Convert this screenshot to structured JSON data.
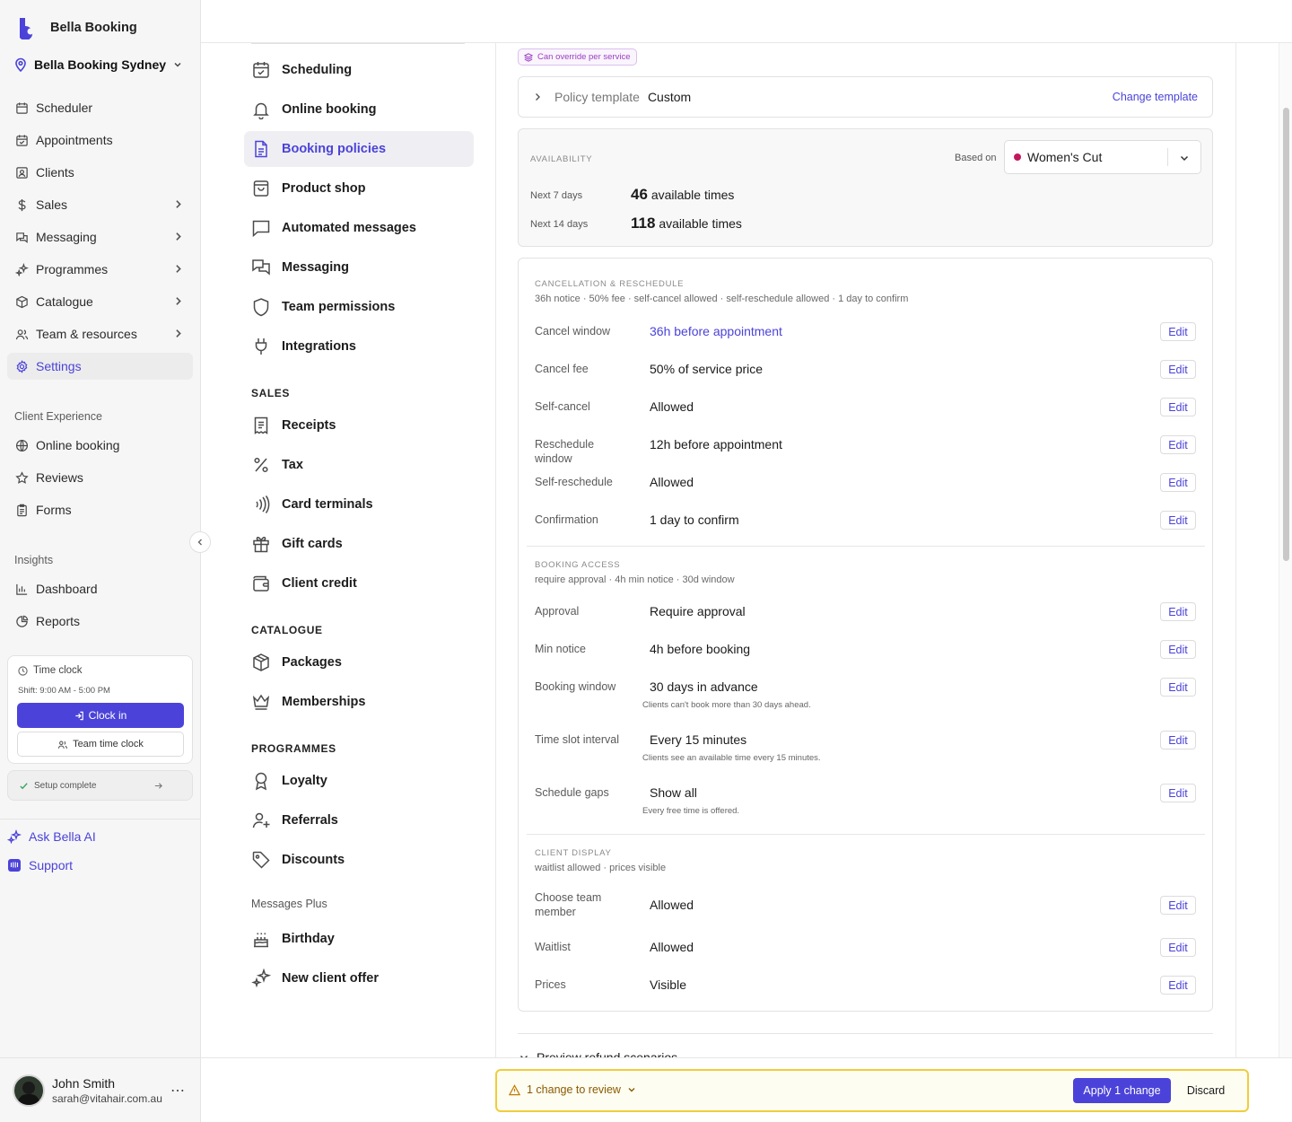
{
  "sidebar": {
    "brand": "Bella Booking",
    "location": "Bella Booking Sydney",
    "nav": [
      {
        "label": "Scheduler",
        "icon": "calendar-icon"
      },
      {
        "label": "Appointments",
        "icon": "calendar-check-icon"
      },
      {
        "label": "Clients",
        "icon": "clients-icon"
      },
      {
        "label": "Sales",
        "icon": "dollar-icon"
      },
      {
        "label": "Messaging",
        "icon": "messaging-icon"
      },
      {
        "label": "Programmes",
        "icon": "sparkle-icon"
      },
      {
        "label": "Catalogue",
        "icon": "box-icon"
      },
      {
        "label": "Team & resources",
        "icon": "team-icon"
      },
      {
        "label": "Settings",
        "icon": "gear-icon"
      }
    ],
    "client_experience_label": "Client Experience",
    "client_experience": [
      {
        "label": "Online booking",
        "icon": "globe-icon"
      },
      {
        "label": "Reviews",
        "icon": "star-icon"
      },
      {
        "label": "Forms",
        "icon": "clipboard-icon"
      }
    ],
    "insights_label": "Insights",
    "insights": [
      {
        "label": "Dashboard",
        "icon": "bar-chart-icon"
      },
      {
        "label": "Reports",
        "icon": "pie-chart-icon"
      }
    ],
    "time_clock": {
      "title": "Time clock",
      "shift": "Shift: 9:00 AM - 5:00 PM",
      "clock_in": "Clock in",
      "team_clock": "Team time clock"
    },
    "setup": "Setup complete",
    "ask_ai": "Ask Bella AI",
    "support": "Support",
    "user": {
      "name": "John Smith",
      "email": "sarah@vitahair.com.au"
    }
  },
  "settings_menu": {
    "items_top": [
      "Scheduling",
      "Online booking",
      "Booking policies",
      "Product shop",
      "Automated messages",
      "Messaging",
      "Team permissions",
      "Integrations"
    ],
    "sales_header": "SALES",
    "sales": [
      "Receipts",
      "Tax",
      "Card terminals",
      "Gift cards",
      "Client credit"
    ],
    "catalogue_header": "CATALOGUE",
    "catalogue": [
      "Packages",
      "Memberships"
    ],
    "programmes_header": "PROGRAMMES",
    "programmes": [
      "Loyalty",
      "Referrals",
      "Discounts"
    ],
    "messages_plus_header": "Messages Plus",
    "messages_plus": [
      "Birthday",
      "New client offer"
    ]
  },
  "main": {
    "override_badge": "Can override per service",
    "template": {
      "label": "Policy template",
      "value": "Custom",
      "change": "Change template"
    },
    "availability": {
      "title": "AVAILABILITY",
      "based_on_label": "Based on",
      "service": "Women's Cut",
      "service_color": "#c2185b",
      "rows": [
        {
          "label": "Next 7 days",
          "count": "46",
          "suffix": "available times"
        },
        {
          "label": "Next 14 days",
          "count": "118",
          "suffix": "available times"
        }
      ]
    },
    "sections": {
      "cancel": {
        "title": "CANCELLATION & RESCHEDULE",
        "summary": "36h notice · 50% fee · self-cancel allowed · self-reschedule allowed · 1 day to confirm",
        "rows": [
          {
            "label": "Cancel window",
            "value": "36h before appointment"
          },
          {
            "label": "Cancel fee",
            "value": "50% of service price"
          },
          {
            "label": "Self-cancel",
            "value": "Allowed"
          },
          {
            "label": "Reschedule window",
            "value": "12h before appointment"
          },
          {
            "label": "Self-reschedule",
            "value": "Allowed"
          },
          {
            "label": "Confirmation",
            "value": "1 day to confirm"
          }
        ]
      },
      "access": {
        "title": "BOOKING ACCESS",
        "summary": "require approval · 4h min notice · 30d window",
        "rows": [
          {
            "label": "Approval",
            "value": "Require approval"
          },
          {
            "label": "Min notice",
            "value": "4h before booking"
          },
          {
            "label": "Booking window",
            "value": "30 days in advance",
            "note": "Clients can't book more than 30 days ahead."
          },
          {
            "label": "Time slot interval",
            "value": "Every 15 minutes",
            "note": "Clients see an available time every 15 minutes."
          },
          {
            "label": "Schedule gaps",
            "value": "Show all",
            "note": "Every free time is offered."
          }
        ]
      },
      "display": {
        "title": "CLIENT DISPLAY",
        "summary": "waitlist allowed · prices visible",
        "rows": [
          {
            "label": "Choose team member",
            "value": "Allowed"
          },
          {
            "label": "Waitlist",
            "value": "Allowed"
          },
          {
            "label": "Prices",
            "value": "Visible"
          }
        ]
      }
    },
    "edit_label": "Edit",
    "preview_refund": "Preview refund scenarios"
  },
  "review_bar": {
    "text": "1 change to review",
    "apply": "Apply 1 change",
    "discard": "Discard",
    "accent": "#4b43d9"
  }
}
